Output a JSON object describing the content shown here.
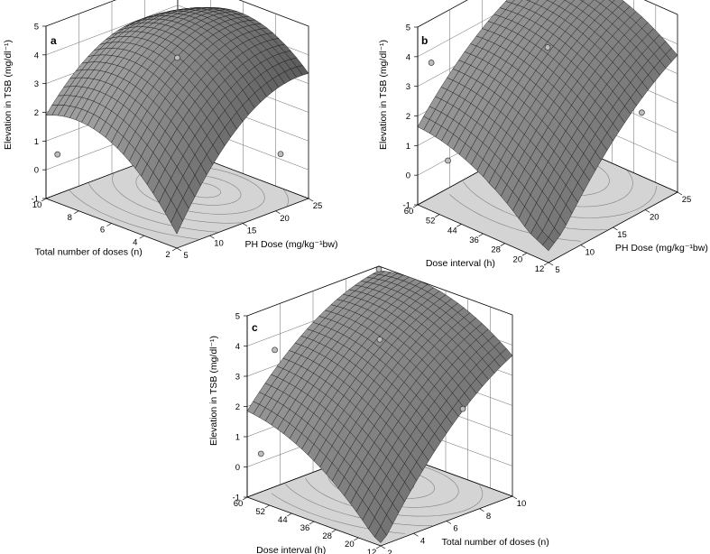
{
  "chart_data": [
    {
      "type": "surface3d",
      "panel_label": "a",
      "zlabel": "Elevation in TSB (mg/dl⁻¹)",
      "zticks": [
        "-1",
        "0",
        "1",
        "2",
        "3",
        "4",
        "5"
      ],
      "zlim": [
        -1,
        5
      ],
      "left_axis": {
        "label": "Total number of doses (n)",
        "ticks": [
          "2",
          "4",
          "6",
          "8",
          "10"
        ],
        "lim": [
          2,
          10
        ]
      },
      "right_axis": {
        "label": "PH Dose (mg/kg⁻¹bw)",
        "ticks": [
          "5",
          "10",
          "15",
          "20",
          "25"
        ],
        "lim": [
          5,
          25
        ]
      },
      "grid": true,
      "peak_z": 4.65,
      "corner_z": {
        "left_min_right_min": -0.7,
        "left_max_right_min": 1.7,
        "left_min_right_max": 1.6,
        "left_max_right_max": 1.8
      },
      "peak_at": {
        "left": 6.0,
        "right": 18.5
      },
      "contour_center": {
        "left": 6.0,
        "right": 18.5
      },
      "design_points": [
        {
          "left": 6,
          "right": 15,
          "z": 3.9
        },
        {
          "left": 10,
          "right": 25,
          "z": 4.9
        },
        {
          "left": 9.5,
          "right": 5.5,
          "z": 0.6
        },
        {
          "left": 2.5,
          "right": 22,
          "z": 0.7
        }
      ]
    },
    {
      "type": "surface3d",
      "panel_label": "b",
      "zlabel": "Elevation in TSB (mg/dl⁻¹)",
      "zticks": [
        "-1",
        "0",
        "1",
        "2",
        "3",
        "4",
        "5"
      ],
      "zlim": [
        -1,
        5
      ],
      "left_axis": {
        "label": "Dose interval (h)",
        "ticks": [
          "12",
          "20",
          "28",
          "36",
          "44",
          "52",
          "60"
        ],
        "lim": [
          12,
          60
        ]
      },
      "right_axis": {
        "label": "PH Dose (mg/kg⁻¹bw)",
        "ticks": [
          "5",
          "10",
          "15",
          "20",
          "25"
        ],
        "lim": [
          5,
          25
        ]
      },
      "grid": true,
      "peak_z": 4.35,
      "corner_z": {
        "left_min_right_min": -0.6,
        "left_max_right_min": 1.6,
        "left_min_right_max": 2.8,
        "left_max_right_max": 3.5
      },
      "peak_at": {
        "left": 40,
        "right": 20
      },
      "contour_center": {
        "left": 40,
        "right": 20
      },
      "design_points": [
        {
          "left": 36,
          "right": 15,
          "z": 4.1
        },
        {
          "left": 60,
          "right": 25,
          "z": 4.9
        },
        {
          "left": 55,
          "right": 5,
          "z": 4.0
        },
        {
          "left": 56,
          "right": 8,
          "z": 0.3
        },
        {
          "left": 18,
          "right": 22,
          "z": 1.8
        }
      ]
    },
    {
      "type": "surface3d",
      "panel_label": "c",
      "zlabel": "Elevation in TSB (mg/dl⁻¹)",
      "zticks": [
        "-1",
        "0",
        "1",
        "2",
        "3",
        "4",
        "5"
      ],
      "zlim": [
        -1,
        5
      ],
      "left_axis": {
        "label": "Dose interval (h)",
        "ticks": [
          "12",
          "20",
          "28",
          "36",
          "44",
          "52",
          "60"
        ],
        "lim": [
          12,
          60
        ]
      },
      "right_axis": {
        "label": "Total number of doses (n)",
        "ticks": [
          "2",
          "4",
          "6",
          "8",
          "10"
        ],
        "lim": [
          2,
          10
        ]
      },
      "grid": true,
      "peak_z": 4.3,
      "corner_z": {
        "left_min_right_min": -0.9,
        "left_max_right_min": 1.6,
        "left_min_right_max": 2.9,
        "left_max_right_max": 3.7
      },
      "peak_at": {
        "left": 40,
        "right": 7.5
      },
      "contour_center": {
        "left": 40,
        "right": 7.5
      },
      "design_points": [
        {
          "left": 36,
          "right": 6,
          "z": 4.2
        },
        {
          "left": 60,
          "right": 10,
          "z": 4.9
        },
        {
          "left": 56,
          "right": 3,
          "z": 3.8
        },
        {
          "left": 58,
          "right": 2.5,
          "z": 0.4
        },
        {
          "left": 18,
          "right": 8,
          "z": 2.1
        }
      ]
    }
  ]
}
